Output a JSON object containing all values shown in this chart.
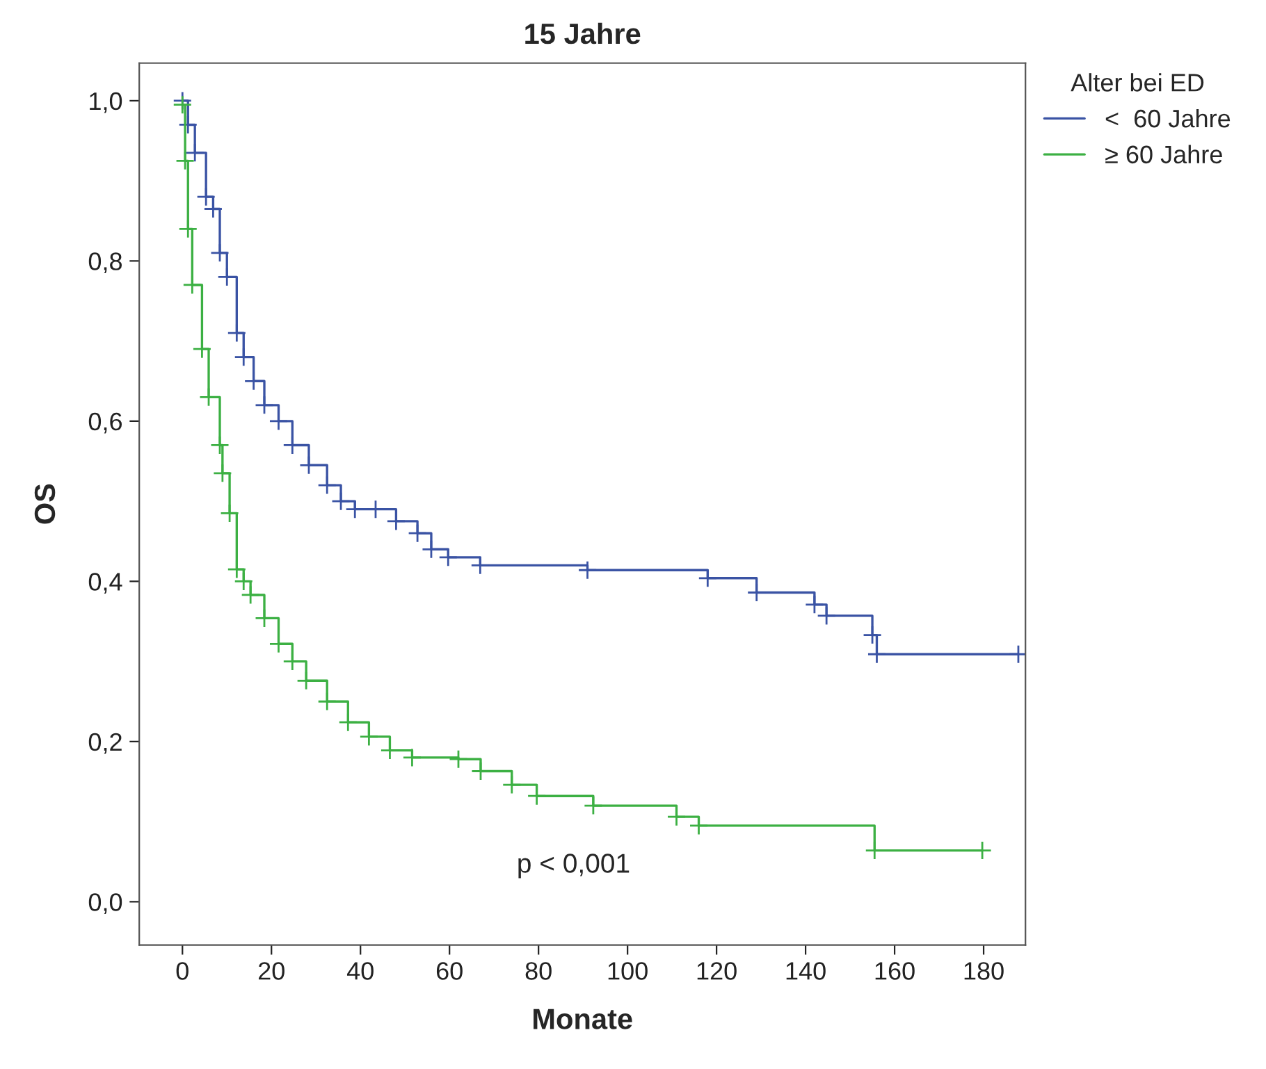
{
  "chart_data": {
    "type": "step",
    "title": "15 Jahre",
    "xlabel": "Monate",
    "ylabel": "OS",
    "legend_title": "Alter bei ED",
    "legend": "top right",
    "marker": "cross",
    "line_style": "solid",
    "grid": false,
    "xlim": [
      -9.7,
      189.4
    ],
    "ylim": [
      -0.054,
      1.047
    ],
    "xticks": [
      0,
      20,
      40,
      60,
      80,
      100,
      120,
      140,
      160,
      180
    ],
    "yticks": [
      {
        "value": 0,
        "label": "0,0"
      },
      {
        "value": 0.2,
        "label": "0,2"
      },
      {
        "value": 0.4,
        "label": "0,4"
      },
      {
        "value": 0.6,
        "label": "0,6"
      },
      {
        "value": 0.8,
        "label": "0,8"
      },
      {
        "value": 1.0,
        "label": "1,0"
      }
    ],
    "annotations": [
      "p < 0,001"
    ],
    "series": [
      {
        "name": "<  60 Jahre",
        "color": "#3a53a4",
        "x": [
          0,
          1.25,
          2.8,
          5.3,
          6.9,
          8.4,
          10,
          12.2,
          13.75,
          16,
          18.4,
          21.6,
          24.7,
          28.4,
          32.5,
          35.6,
          38.75,
          43.4,
          48,
          52.8,
          55.9,
          59.7,
          66.9,
          91,
          118,
          129,
          142,
          144.7,
          155,
          156,
          187.8
        ],
        "values": [
          1.0,
          0.97,
          0.935,
          0.88,
          0.865,
          0.81,
          0.78,
          0.71,
          0.68,
          0.65,
          0.62,
          0.6,
          0.57,
          0.545,
          0.52,
          0.5,
          0.49,
          0.49,
          0.475,
          0.46,
          0.44,
          0.43,
          0.42,
          0.414,
          0.404,
          0.386,
          0.371,
          0.357,
          0.333,
          0.309,
          0.309
        ]
      },
      {
        "name": "≥ 60 Jahre",
        "color": "#3cb043",
        "x": [
          0,
          0.6,
          1.25,
          2.2,
          4.4,
          5.9,
          8.4,
          9,
          10.6,
          12.2,
          13.75,
          15.3,
          18.4,
          21.6,
          24.7,
          27.8,
          32.5,
          37.2,
          41.9,
          46.6,
          51.6,
          62,
          67,
          74,
          79.6,
          92.3,
          111,
          116,
          155.5,
          179.7
        ],
        "values": [
          0.995,
          0.925,
          0.84,
          0.77,
          0.69,
          0.63,
          0.57,
          0.535,
          0.485,
          0.415,
          0.4,
          0.383,
          0.354,
          0.322,
          0.3,
          0.276,
          0.25,
          0.224,
          0.206,
          0.189,
          0.18,
          0.178,
          0.163,
          0.146,
          0.132,
          0.12,
          0.106,
          0.095,
          0.064,
          0.064
        ]
      }
    ]
  }
}
